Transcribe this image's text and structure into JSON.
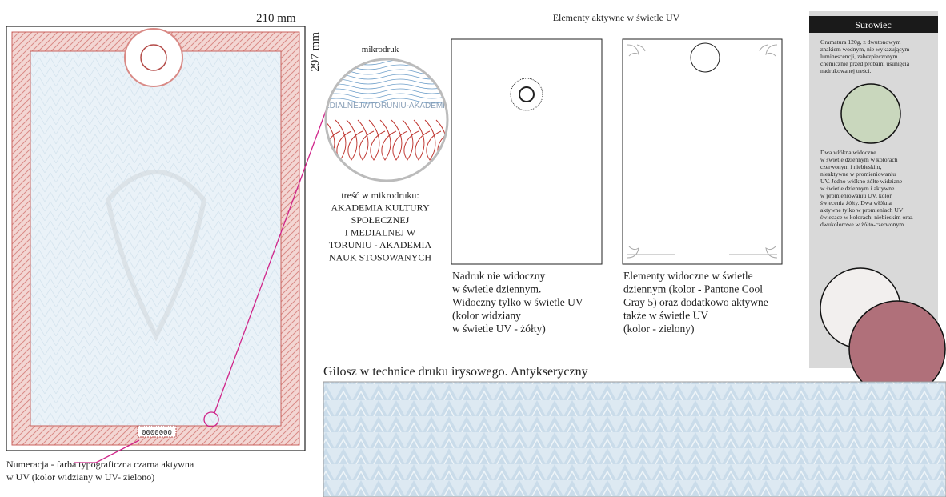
{
  "dimensions": {
    "width": "210 mm",
    "height": "297 mm"
  },
  "certificate": {
    "number": "0000000",
    "numbering_note": [
      "Numeracja - farba typograficzna czarna aktywna",
      "w UV (kolor widziany w UV- zielono)"
    ]
  },
  "microprint": {
    "label": "mikrodruk",
    "sample": "EDIALNEJWTORUNIU-AKADEMI",
    "content": [
      "treść w mikrodruku:",
      "AKADEMIA KULTURY",
      "SPOŁECZNEJ",
      "I MEDIALNEJ W",
      "TORUNIU - AKADEMIA",
      "NAUK STOSOWANYCH"
    ]
  },
  "uv": {
    "title": "Elementy aktywne w świetle UV",
    "panels": [
      {
        "caption": [
          "Nadruk nie widoczny",
          "w świetle dziennym.",
          "Widoczny tylko w świetle UV",
          "(kolor widziany",
          "w świetle UV - żółty)"
        ]
      },
      {
        "caption": [
          "Elementy widoczne w świetle",
          "dziennym (kolor - Pantone Cool",
          "Gray 5) oraz dodatkowo aktywne",
          "także w świetle UV",
          "(kolor - zielony)"
        ]
      }
    ]
  },
  "material": {
    "title": "Surowiec",
    "paragraph1": [
      "Gramatura 120g, z dwutonowym",
      "znakiem wodnym, nie wykazującym",
      "luminescencji,  zabezpieczonym",
      "chemicznie przed próbami usunięcia",
      "nadrukowanej treści."
    ],
    "paragraph2": [
      "Dwa włókna widoczne",
      "w świetle dziennym w kolorach",
      "czerwonym i niebieskim,",
      "nieaktywne w promieniowaniu",
      "UV. Jedno włókno żółte widziane",
      "w świetle dziennym i aktywne",
      "w promieniowaniu UV, kolor",
      "świecenia żółty. Dwa włókna",
      "aktywne tylko w promieniach UV",
      "świecące w kolorach: niebieskim oraz",
      "dwukolorowe w żółto-czerwonym."
    ]
  },
  "guilloche": {
    "title": "Gilosz w technice druku irysowego. Antykseryczny"
  }
}
